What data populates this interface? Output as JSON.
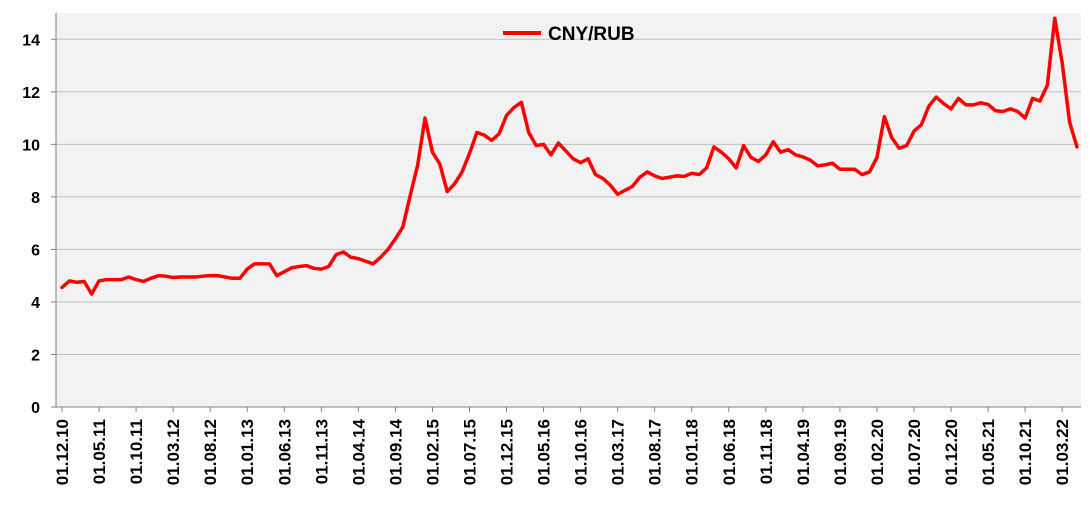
{
  "chart_data": {
    "type": "line",
    "ylim": [
      0,
      15
    ],
    "yticks": [
      0,
      2,
      4,
      6,
      8,
      10,
      12,
      14
    ],
    "grid": true,
    "legend_position": "top-center",
    "colors": {
      "series": "#ff0000",
      "plot_bg": "#f2f2f2",
      "grid": "#bfbfbf"
    },
    "x_tick_labels": [
      "01.12.10",
      "01.05.11",
      "01.10.11",
      "01.03.12",
      "01.08.12",
      "01.01.13",
      "01.06.13",
      "01.11.13",
      "01.04.14",
      "01.09.14",
      "01.02.15",
      "01.07.15",
      "01.12.15",
      "01.05.16",
      "01.10.16",
      "01.03.17",
      "01.08.17",
      "01.01.18",
      "01.06.18",
      "01.11.18",
      "01.04.19",
      "01.09.19",
      "01.02.20",
      "01.07.20",
      "01.12.20",
      "01.05.21",
      "01.10.21",
      "01.03.22"
    ],
    "series": [
      {
        "name": "CNY/RUB",
        "values": [
          4.55,
          4.8,
          4.75,
          4.78,
          4.3,
          4.8,
          4.85,
          4.85,
          4.85,
          4.95,
          4.85,
          4.78,
          4.9,
          5.0,
          4.98,
          4.93,
          4.95,
          4.95,
          4.95,
          4.98,
          5.0,
          5.0,
          4.95,
          4.9,
          4.9,
          5.25,
          5.45,
          5.45,
          5.45,
          5.0,
          5.15,
          5.3,
          5.35,
          5.38,
          5.28,
          5.25,
          5.35,
          5.8,
          5.9,
          5.7,
          5.65,
          5.55,
          5.45,
          5.7,
          6.0,
          6.4,
          6.85,
          8.05,
          9.2,
          11.0,
          9.7,
          9.25,
          8.2,
          8.5,
          8.95,
          9.65,
          10.45,
          10.35,
          10.15,
          10.4,
          11.1,
          11.4,
          11.6,
          10.45,
          9.95,
          10.0,
          9.6,
          10.05,
          9.75,
          9.45,
          9.3,
          9.45,
          8.85,
          8.7,
          8.45,
          8.1,
          8.25,
          8.4,
          8.75,
          8.95,
          8.8,
          8.7,
          8.75,
          8.8,
          8.78,
          8.9,
          8.85,
          9.1,
          9.9,
          9.7,
          9.45,
          9.1,
          9.95,
          9.5,
          9.35,
          9.6,
          10.1,
          9.7,
          9.8,
          9.6,
          9.52,
          9.4,
          9.18,
          9.22,
          9.28,
          9.05,
          9.05,
          9.05,
          8.85,
          8.95,
          9.5,
          11.05,
          10.25,
          9.85,
          9.95,
          10.5,
          10.75,
          11.45,
          11.8,
          11.55,
          11.35,
          11.75,
          11.5,
          11.5,
          11.58,
          11.52,
          11.28,
          11.25,
          11.35,
          11.25,
          11.0,
          11.75,
          11.65,
          12.25,
          14.8,
          13.1,
          10.85,
          9.9
        ]
      }
    ]
  }
}
